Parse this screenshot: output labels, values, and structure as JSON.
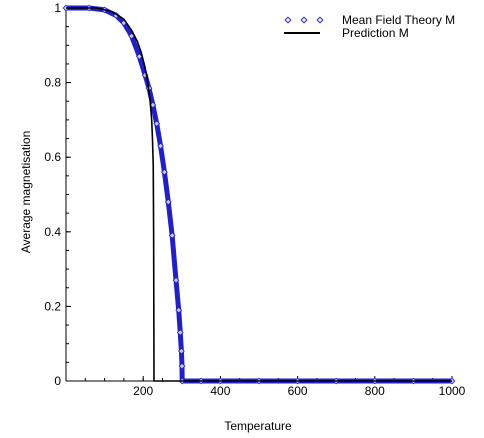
{
  "chart_data": {
    "type": "line",
    "xlabel": "Temperature",
    "ylabel": "Average magnetisation",
    "xlim": [
      0,
      1000
    ],
    "ylim": [
      0,
      1
    ],
    "x_ticks": [
      200,
      400,
      600,
      800,
      1000
    ],
    "x_tick_labels": [
      "200",
      "400",
      "600",
      "800",
      "1000"
    ],
    "y_ticks": [
      0,
      0.2,
      0.4,
      0.6,
      0.8,
      1
    ],
    "y_tick_labels": [
      "0",
      "0.2",
      "0.4",
      "0.6",
      "0.8",
      "1"
    ],
    "grid": false,
    "legend_position": "top-right",
    "series": [
      {
        "name": "Mean Field Theory M",
        "style": "markers",
        "color": "#1f1fd0",
        "x": [
          0,
          60,
          100,
          130,
          150,
          170,
          190,
          205,
          215,
          225,
          235,
          245,
          255,
          265,
          275,
          285,
          292,
          296,
          299,
          300.5,
          301,
          350,
          400,
          500,
          600,
          700,
          800,
          900,
          1000
        ],
        "y": [
          1.0,
          1.0,
          0.995,
          0.98,
          0.96,
          0.925,
          0.87,
          0.82,
          0.785,
          0.74,
          0.69,
          0.63,
          0.56,
          0.48,
          0.39,
          0.27,
          0.19,
          0.13,
          0.08,
          0.04,
          0.0,
          0.0,
          0.0,
          0.0,
          0.0,
          0.0,
          0.0,
          0.0,
          0.0
        ]
      },
      {
        "name": "Prediction M",
        "style": "line",
        "color": "#000000",
        "x": [
          0,
          80,
          120,
          150,
          170,
          185,
          195,
          205,
          212,
          218,
          222,
          224,
          226,
          227,
          227.5,
          228,
          1000
        ],
        "y": [
          1.0,
          1.0,
          0.99,
          0.97,
          0.94,
          0.91,
          0.88,
          0.84,
          0.8,
          0.75,
          0.7,
          0.65,
          0.58,
          0.4,
          0.2,
          0.0,
          0.0
        ]
      }
    ]
  }
}
